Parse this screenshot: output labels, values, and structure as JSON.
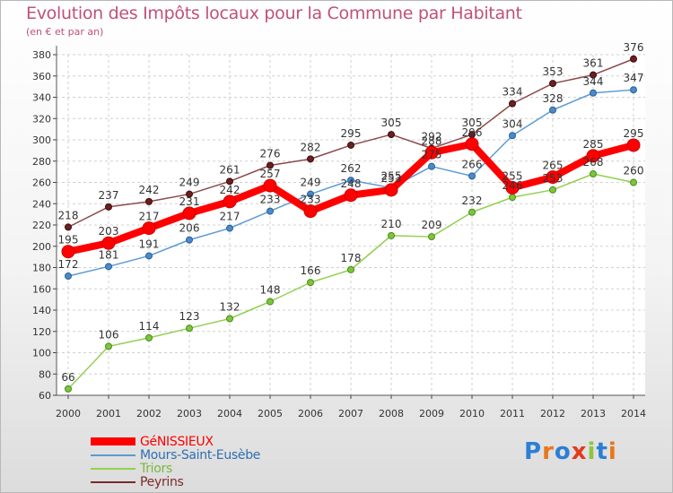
{
  "title": "Evolution des Impôts locaux pour la Commune par Habitant",
  "subtitle": "(en € et par an)",
  "logo": {
    "letters": [
      "P",
      "r",
      "o",
      "x",
      "i",
      "t",
      "i"
    ],
    "colors": [
      "#2b7fd4",
      "#e8771c",
      "#2b7fd4",
      "#e23b1c",
      "#8cc63e",
      "#2b7fd4",
      "#e8771c"
    ]
  },
  "chart_data": {
    "type": "line",
    "title": "Evolution des Impôts locaux pour la Commune par Habitant",
    "ylabel": "(en € et par an)",
    "xlabel": "",
    "x": [
      "2000",
      "2001",
      "2002",
      "2003",
      "2004",
      "2005",
      "2006",
      "2007",
      "2008",
      "2009",
      "2010",
      "2011",
      "2012",
      "2013",
      "2014"
    ],
    "ylim": [
      60,
      380
    ],
    "yticks": [
      60,
      80,
      100,
      120,
      140,
      160,
      180,
      200,
      220,
      240,
      260,
      280,
      300,
      320,
      340,
      360,
      380
    ],
    "grid": true,
    "legend_position": "bottom-left",
    "series": [
      {
        "name": "GéNISSIEUX",
        "color": "#ff0000",
        "values": [
          195,
          203,
          217,
          231,
          242,
          257,
          233,
          248,
          253,
          288,
          296,
          255,
          265,
          285,
          295
        ],
        "labels": [
          "195",
          "203",
          "217",
          "231",
          "242",
          "257",
          "233",
          "248",
          "253",
          "288",
          "296",
          "255",
          "265",
          "285",
          "295"
        ]
      },
      {
        "name": "Mours-Saint-Eusèbe",
        "color": "#5b9bd5",
        "values": [
          172,
          181,
          191,
          206,
          217,
          233,
          249,
          262,
          255,
          275,
          266,
          304,
          328,
          344,
          347
        ],
        "labels": [
          "172",
          "181",
          "191",
          "206",
          "217",
          "233",
          "249",
          "262",
          "255",
          "275",
          "266",
          "304",
          "328",
          "344",
          "347"
        ]
      },
      {
        "name": "Triors",
        "color": "#92d050",
        "values": [
          66,
          106,
          114,
          123,
          132,
          148,
          166,
          178,
          210,
          209,
          232,
          246,
          253,
          268,
          260
        ],
        "labels": [
          "66",
          "106",
          "114",
          "123",
          "132",
          "148",
          "166",
          "178",
          "210",
          "209",
          "232",
          "246",
          "253",
          "268",
          "260"
        ]
      },
      {
        "name": "Peyrins",
        "color": "#7b2a2a",
        "values": [
          218,
          237,
          242,
          249,
          261,
          276,
          282,
          295,
          305,
          292,
          305,
          334,
          353,
          361,
          376
        ],
        "labels": [
          "218",
          "237",
          "242",
          "249",
          "261",
          "276",
          "282",
          "295",
          "305",
          "292",
          "305",
          "334",
          "353",
          "361",
          "376"
        ]
      }
    ]
  }
}
